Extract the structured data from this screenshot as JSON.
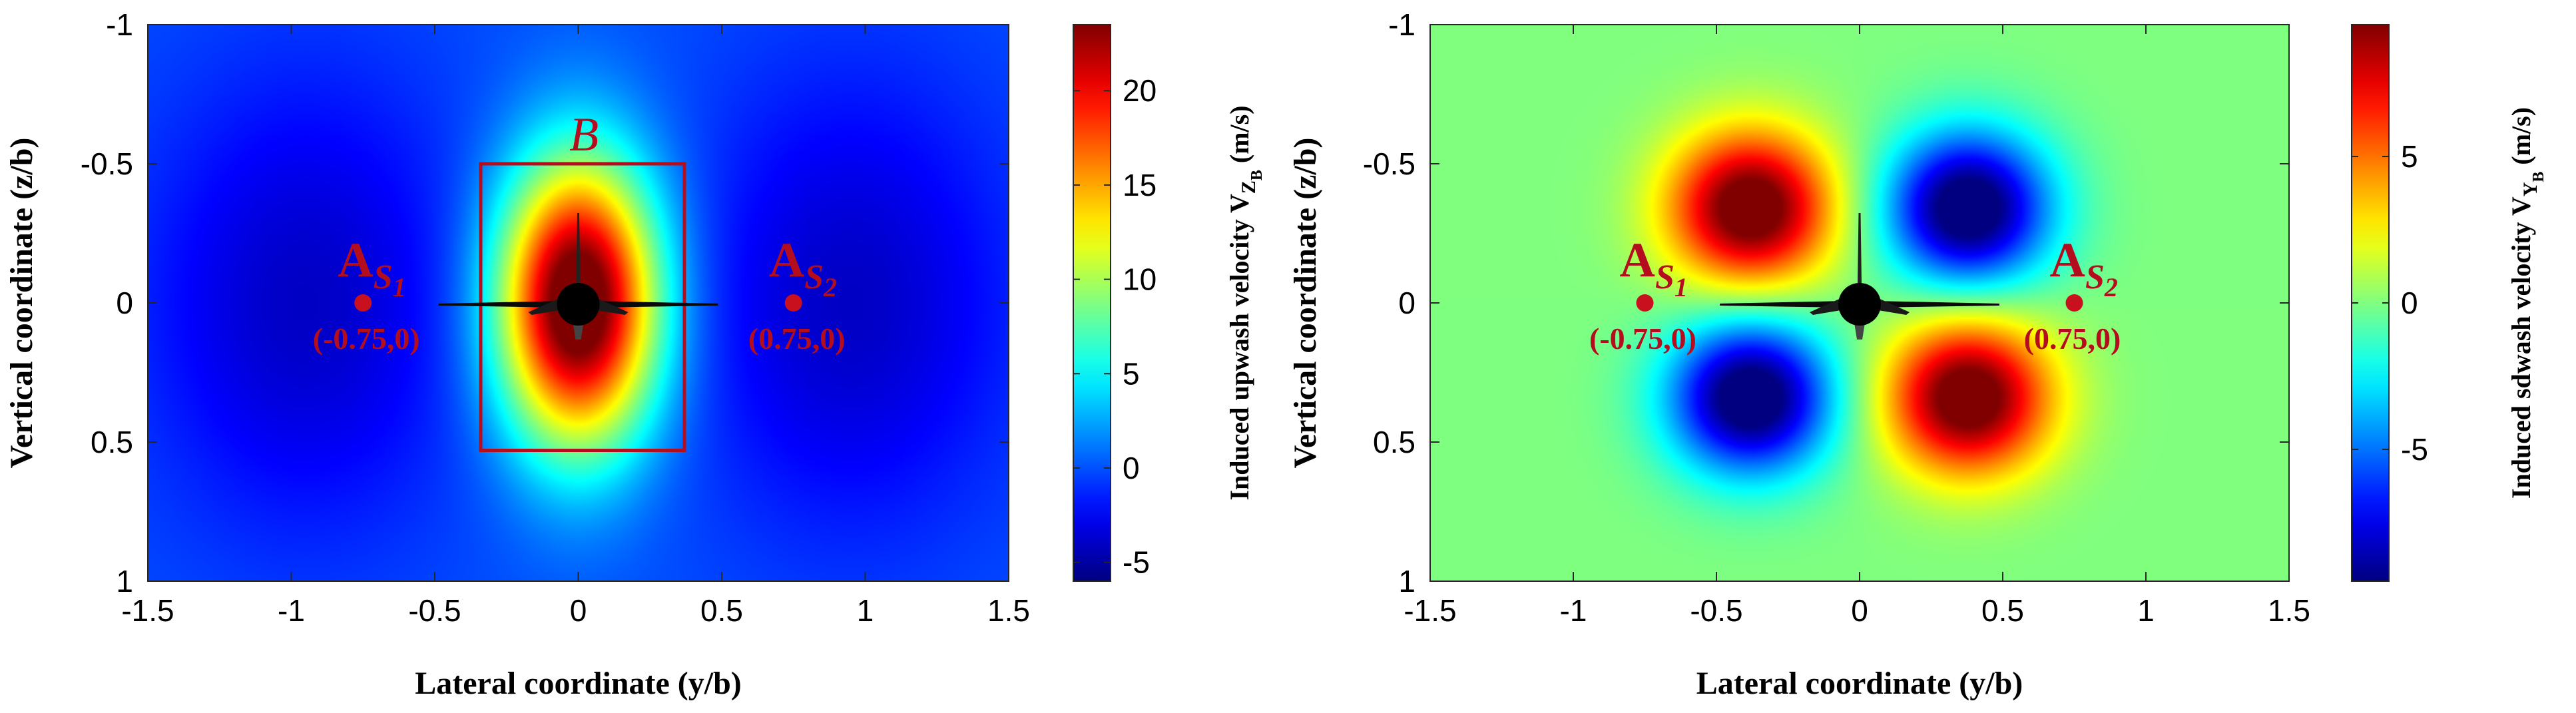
{
  "chart_data": [
    {
      "type": "heatmap",
      "xlabel": "Lateral coordinate (y/b)",
      "ylabel": "Vertical coordinate (z/b)",
      "xlim": [
        -1.5,
        1.5
      ],
      "ylim": [
        -1,
        1
      ],
      "y_direction": "reversed",
      "xticks": [
        "-1.5",
        "-1",
        "-0.5",
        "0",
        "0.5",
        "1",
        "1.5"
      ],
      "yticks": [
        "-1",
        "-0.5",
        "0",
        "0.5",
        "1"
      ],
      "colorbar": {
        "label": "Induced upwash velocity V",
        "sub1": "Z",
        "sub2": "B",
        "unit": "(m/s)",
        "range": [
          -6,
          23.5
        ],
        "ticks": [
          "-5",
          "0",
          "5",
          "10",
          "15",
          "20"
        ],
        "colormap": "jet"
      },
      "field": "upwash",
      "box": {
        "label": "B",
        "y_range": [
          -0.34,
          0.37
        ],
        "z_range": [
          -0.5,
          0.53
        ]
      },
      "points": [
        {
          "name": "A",
          "sub": "S",
          "subsub": "1",
          "coord_label": "(-0.75,0)",
          "y": -0.75,
          "z": 0
        },
        {
          "name": "A",
          "sub": "S",
          "subsub": "2",
          "coord_label": "(0.75,0)",
          "y": 0.75,
          "z": 0
        }
      ]
    },
    {
      "type": "heatmap",
      "xlabel": "Lateral coordinate (y/b)",
      "ylabel": "Vertical coordinate (z/b)",
      "xlim": [
        -1.5,
        1.5
      ],
      "ylim": [
        -1,
        1
      ],
      "y_direction": "reversed",
      "xticks": [
        "-1.5",
        "-1",
        "-0.5",
        "0",
        "0.5",
        "1",
        "1.5"
      ],
      "yticks": [
        "-1",
        "-0.5",
        "0",
        "0.5",
        "1"
      ],
      "colorbar": {
        "label": "Induced sdwash velocity V",
        "sub1": "Y",
        "sub2": "B",
        "unit": "(m/s)",
        "range": [
          -9.5,
          9.5
        ],
        "ticks": [
          "-5",
          "0",
          "5"
        ],
        "colormap": "jet"
      },
      "field": "sidewash",
      "points": [
        {
          "name": "A",
          "sub": "S",
          "subsub": "1",
          "coord_label": "(-0.75,0)",
          "y": -0.75,
          "z": 0
        },
        {
          "name": "A",
          "sub": "S",
          "subsub": "2",
          "coord_label": "(0.75,0)",
          "y": 0.75,
          "z": 0
        }
      ]
    }
  ]
}
